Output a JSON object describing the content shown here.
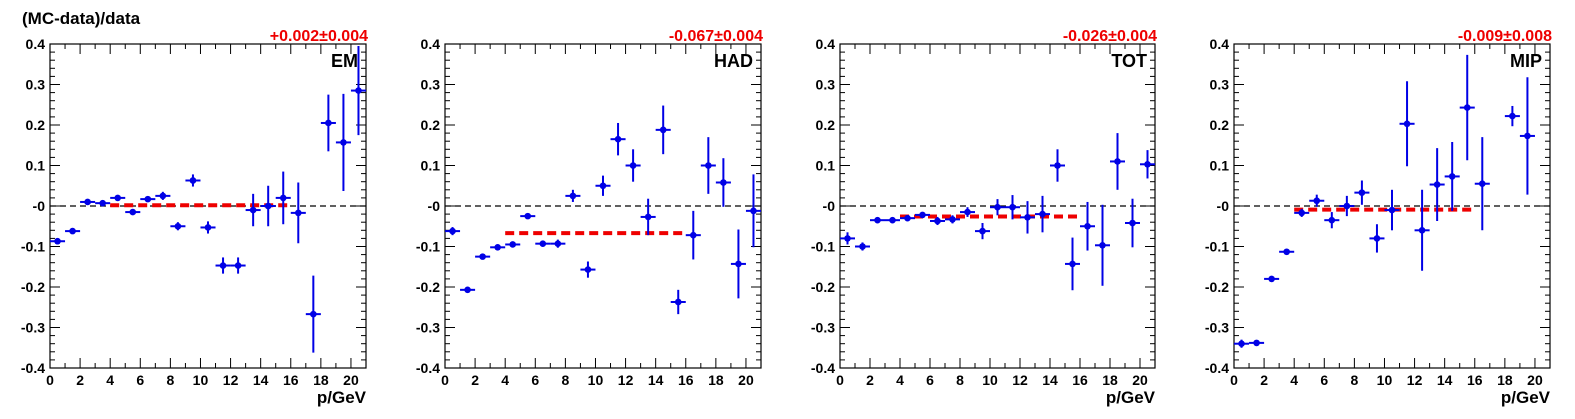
{
  "figure": {
    "ylabel": "(MC-data)/data"
  },
  "chart_data": [
    {
      "type": "scatter",
      "panel_label": "EM",
      "fit_text": "+0.002±0.004",
      "xlabel": "p/GeV",
      "xlim": [
        0,
        21
      ],
      "ylim": [
        -0.4,
        0.4
      ],
      "xticks": [
        0,
        2,
        4,
        6,
        8,
        10,
        12,
        14,
        16,
        18,
        20
      ],
      "yticks": [
        -0.4,
        -0.3,
        -0.2,
        -0.1,
        0,
        0.1,
        0.2,
        0.3,
        0.4
      ],
      "ytick_labels": [
        "-0.4",
        "-0.3",
        "-0.2",
        "-0.1",
        "-0",
        "0.1",
        "0.2",
        "0.3",
        "0.4"
      ],
      "reference_line": 0,
      "fit_line": {
        "value": 0.002,
        "x": [
          4,
          16
        ]
      },
      "x": [
        0.5,
        1.5,
        2.5,
        3.5,
        4.5,
        5.5,
        6.5,
        7.5,
        8.5,
        9.5,
        10.5,
        11.5,
        12.5,
        13.5,
        14.5,
        15.5,
        16.5,
        17.5,
        18.5,
        19.5,
        20.5
      ],
      "y": [
        -0.087,
        -0.062,
        0.01,
        0.007,
        0.02,
        -0.015,
        0.017,
        0.025,
        -0.05,
        0.063,
        -0.053,
        -0.147,
        -0.147,
        -0.01,
        0.0,
        0.02,
        -0.017,
        -0.267,
        0.205,
        0.157,
        0.285
      ],
      "yerr": [
        0.005,
        0.005,
        0.005,
        0.005,
        0.005,
        0.005,
        0.006,
        0.01,
        0.01,
        0.015,
        0.015,
        0.02,
        0.02,
        0.04,
        0.05,
        0.065,
        0.075,
        0.095,
        0.07,
        0.12,
        0.11
      ]
    },
    {
      "type": "scatter",
      "panel_label": "HAD",
      "fit_text": "-0.067±0.004",
      "xlabel": "",
      "xlim": [
        0,
        21
      ],
      "ylim": [
        -0.4,
        0.4
      ],
      "xticks": [
        0,
        2,
        4,
        6,
        8,
        10,
        12,
        14,
        16,
        18,
        20
      ],
      "yticks": [
        -0.4,
        -0.3,
        -0.2,
        -0.1,
        0,
        0.1,
        0.2,
        0.3,
        0.4
      ],
      "ytick_labels": [
        "-0.4",
        "-0.3",
        "-0.2",
        "-0.1",
        "-0",
        "0.1",
        "0.2",
        "0.3",
        "0.4"
      ],
      "reference_line": 0,
      "fit_line": {
        "value": -0.067,
        "x": [
          4,
          16
        ]
      },
      "x": [
        0.5,
        1.5,
        2.5,
        3.5,
        4.5,
        5.5,
        6.5,
        7.5,
        8.5,
        9.5,
        10.5,
        11.5,
        12.5,
        13.5,
        14.5,
        15.5,
        16.5,
        17.5,
        18.5,
        19.5,
        20.5
      ],
      "y": [
        -0.062,
        -0.207,
        -0.125,
        -0.102,
        -0.095,
        -0.025,
        -0.093,
        -0.093,
        0.025,
        -0.157,
        0.05,
        0.165,
        0.1,
        -0.027,
        0.188,
        -0.237,
        -0.072,
        0.1,
        0.058,
        -0.143,
        -0.012
      ],
      "yerr": [
        0.01,
        0.005,
        0.005,
        0.005,
        0.005,
        0.005,
        0.007,
        0.01,
        0.015,
        0.02,
        0.025,
        0.04,
        0.04,
        0.045,
        0.06,
        0.03,
        0.06,
        0.07,
        0.06,
        0.085,
        0.09
      ]
    },
    {
      "type": "scatter",
      "panel_label": "TOT",
      "fit_text": "-0.026±0.004",
      "xlabel": "p/GeV",
      "xlim": [
        0,
        21
      ],
      "ylim": [
        -0.4,
        0.4
      ],
      "xticks": [
        0,
        2,
        4,
        6,
        8,
        10,
        12,
        14,
        16,
        18,
        20
      ],
      "yticks": [
        -0.4,
        -0.3,
        -0.2,
        -0.1,
        0,
        0.1,
        0.2,
        0.3,
        0.4
      ],
      "ytick_labels": [
        "-0.4",
        "-0.3",
        "-0.2",
        "-0.1",
        "-0",
        "0.1",
        "0.2",
        "0.3",
        "0.4"
      ],
      "reference_line": 0,
      "fit_line": {
        "value": -0.026,
        "x": [
          4,
          16
        ]
      },
      "x": [
        0.5,
        1.5,
        2.5,
        3.5,
        4.5,
        5.5,
        6.5,
        7.5,
        8.5,
        9.5,
        10.5,
        11.5,
        12.5,
        13.5,
        14.5,
        15.5,
        16.5,
        17.5,
        18.5,
        19.5,
        20.5
      ],
      "y": [
        -0.08,
        -0.1,
        -0.035,
        -0.035,
        -0.03,
        -0.022,
        -0.037,
        -0.033,
        -0.015,
        -0.062,
        -0.003,
        -0.003,
        -0.028,
        -0.02,
        0.1,
        -0.143,
        -0.05,
        -0.097,
        0.11,
        -0.042,
        0.103
      ],
      "yerr": [
        0.015,
        0.01,
        0.005,
        0.005,
        0.005,
        0.005,
        0.01,
        0.01,
        0.012,
        0.02,
        0.02,
        0.03,
        0.04,
        0.045,
        0.04,
        0.065,
        0.06,
        0.1,
        0.07,
        0.06,
        0.035
      ]
    },
    {
      "type": "scatter",
      "panel_label": "MIP",
      "fit_text": "-0.009±0.008",
      "xlabel": "p/GeV",
      "xlim": [
        0,
        21
      ],
      "ylim": [
        -0.4,
        0.4
      ],
      "xticks": [
        0,
        2,
        4,
        6,
        8,
        10,
        12,
        14,
        16,
        18,
        20
      ],
      "yticks": [
        -0.4,
        -0.3,
        -0.2,
        -0.1,
        0,
        0.1,
        0.2,
        0.3,
        0.4
      ],
      "ytick_labels": [
        "-0.4",
        "-0.3",
        "-0.2",
        "-0.1",
        "-0",
        "0.1",
        "0.2",
        "0.3",
        "0.4"
      ],
      "reference_line": 0,
      "fit_line": {
        "value": -0.009,
        "x": [
          4,
          16
        ]
      },
      "x": [
        0.5,
        1.5,
        2.5,
        3.5,
        4.5,
        5.5,
        6.5,
        7.5,
        8.5,
        9.5,
        10.5,
        11.5,
        12.5,
        13.5,
        14.5,
        15.5,
        16.5,
        18.5,
        19.5
      ],
      "y": [
        -0.34,
        -0.338,
        -0.18,
        -0.113,
        -0.017,
        0.013,
        -0.035,
        0.0,
        0.033,
        -0.08,
        -0.01,
        0.203,
        -0.06,
        0.053,
        0.073,
        0.243,
        0.055,
        0.222,
        0.173
      ],
      "yerr": [
        0.01,
        0.005,
        0.005,
        0.005,
        0.01,
        0.015,
        0.02,
        0.025,
        0.03,
        0.035,
        0.05,
        0.105,
        0.1,
        0.09,
        0.085,
        0.13,
        0.115,
        0.025,
        0.145
      ]
    }
  ]
}
